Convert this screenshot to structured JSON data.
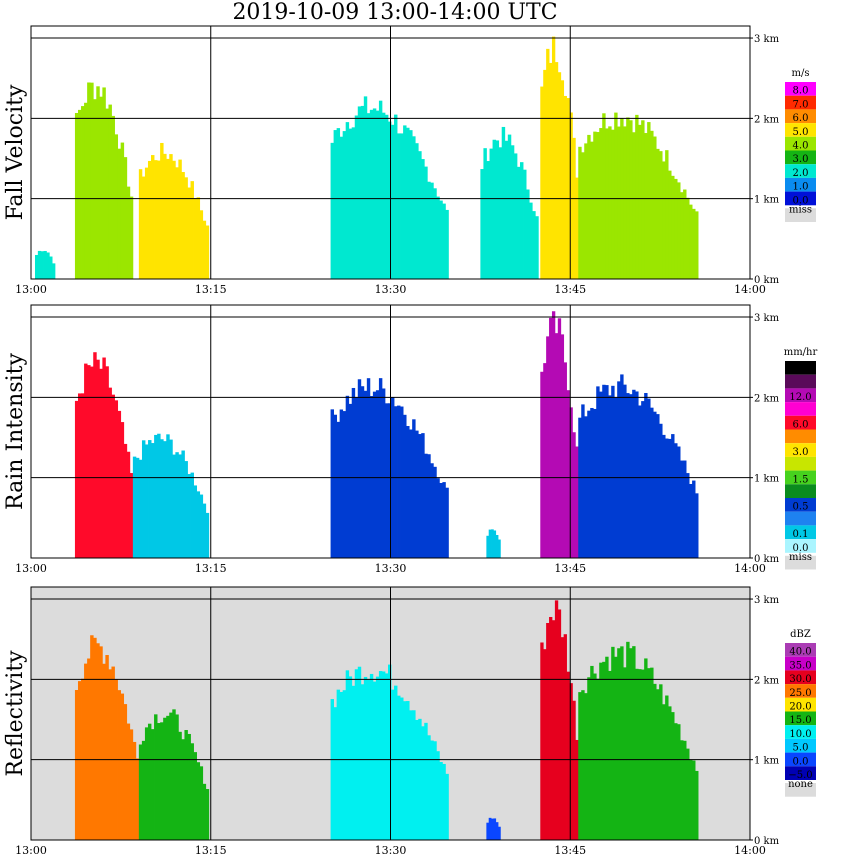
{
  "title": "2019-10-09   13:00-14:00 UTC",
  "time_ticks": [
    "13:00",
    "13:15",
    "13:30",
    "13:45",
    "14:00"
  ],
  "height_ticks": [
    "0 km",
    "1 km",
    "2 km",
    "3 km"
  ],
  "colors": {
    "missing": "#dcdcdc",
    "frame": "#000000"
  },
  "chart_data": [
    {
      "type": "heatmap",
      "title": "Fall Velocity",
      "ylabel": "Fall Velocity",
      "unit": "m/s",
      "x_range": [
        "13:00",
        "14:00"
      ],
      "y_range_km": [
        0,
        3.1
      ],
      "x_ticks": [
        "13:00",
        "13:15",
        "13:30",
        "13:45",
        "14:00"
      ],
      "y_ticks": [
        "0 km",
        "1 km",
        "2 km",
        "3 km"
      ],
      "grid": true,
      "background": "#ffffff",
      "legend": [
        {
          "label": "8.0",
          "color": "#ff00ff"
        },
        {
          "label": "7.0",
          "color": "#ff2a00"
        },
        {
          "label": "6.0",
          "color": "#ff8c00"
        },
        {
          "label": "5.0",
          "color": "#ffe400"
        },
        {
          "label": "4.0",
          "color": "#9be600"
        },
        {
          "label": "3.0",
          "color": "#14b414"
        },
        {
          "label": "2.0",
          "color": "#00e8d0"
        },
        {
          "label": "1.0",
          "color": "#0a8cf0"
        },
        {
          "label": "0.0",
          "color": "#0010d8"
        }
      ],
      "legend_missing": "miss",
      "echoes": [
        {
          "t0": "13:00:20",
          "t1": "13:02:00",
          "bottom_km": 0,
          "top_km": 0.4,
          "value": "2.0"
        },
        {
          "t0": "13:03:40",
          "t1": "13:08:30",
          "bottom_km": 0,
          "top_km": 2.6,
          "value": "4.0"
        },
        {
          "t0": "13:09:00",
          "t1": "13:14:50",
          "bottom_km": 0,
          "top_km": 1.7,
          "value": "5.0"
        },
        {
          "t0": "13:25:00",
          "t1": "13:34:50",
          "bottom_km": 0,
          "top_km": 2.3,
          "value": "2.0"
        },
        {
          "t0": "13:37:30",
          "t1": "13:42:20",
          "bottom_km": 0,
          "top_km": 1.9,
          "value": "2.0"
        },
        {
          "t0": "13:42:30",
          "t1": "13:45:40",
          "bottom_km": 0,
          "top_km": 3.1,
          "value": "5.0"
        },
        {
          "t0": "13:45:40",
          "t1": "13:55:40",
          "bottom_km": 0,
          "top_km": 2.2,
          "value": "4.0"
        }
      ]
    },
    {
      "type": "heatmap",
      "title": "Rain Intensity",
      "ylabel": "Rain Intensity",
      "unit": "mm/hr",
      "x_range": [
        "13:00",
        "14:00"
      ],
      "y_range_km": [
        0,
        3.1
      ],
      "x_ticks": [
        "13:00",
        "13:15",
        "13:30",
        "13:45",
        "14:00"
      ],
      "y_ticks": [
        "0 km",
        "1 km",
        "2 km",
        "3 km"
      ],
      "grid": true,
      "background": "#ffffff",
      "legend": [
        {
          "label": "48.0",
          "color": "#000000"
        },
        {
          "label": "",
          "color": "#5a0a5a"
        },
        {
          "label": "12.0",
          "color": "#b40ab4"
        },
        {
          "label": "",
          "color": "#ff00d2"
        },
        {
          "label": "6.0",
          "color": "#ff0a2a"
        },
        {
          "label": "",
          "color": "#ff8c00"
        },
        {
          "label": "3.0",
          "color": "#ffe400"
        },
        {
          "label": "",
          "color": "#c8e600"
        },
        {
          "label": "1.5",
          "color": "#46d21e"
        },
        {
          "label": "",
          "color": "#0a8c1e"
        },
        {
          "label": "0.5",
          "color": "#003cd2"
        },
        {
          "label": "",
          "color": "#1e82f0"
        },
        {
          "label": "0.1",
          "color": "#00c8e6"
        },
        {
          "label": "0.0",
          "color": "#aaf5ff"
        }
      ],
      "legend_missing": "miss",
      "echoes": [
        {
          "t0": "13:03:40",
          "t1": "13:08:30",
          "bottom_km": 0,
          "top_km": 2.6,
          "value": "6.0"
        },
        {
          "t0": "13:08:30",
          "t1": "13:14:50",
          "bottom_km": 0,
          "top_km": 1.6,
          "value": "0.1"
        },
        {
          "t0": "13:25:00",
          "t1": "13:34:50",
          "bottom_km": 0,
          "top_km": 2.3,
          "value": "0.5"
        },
        {
          "t0": "13:38:00",
          "t1": "13:39:10",
          "bottom_km": 0,
          "top_km": 0.4,
          "value": "0.1"
        },
        {
          "t0": "13:42:30",
          "t1": "13:45:40",
          "bottom_km": 0,
          "top_km": 3.1,
          "value": "12.0"
        },
        {
          "t0": "13:45:40",
          "t1": "13:55:40",
          "bottom_km": 0,
          "top_km": 2.3,
          "value": "0.5"
        }
      ]
    },
    {
      "type": "heatmap",
      "title": "Reflectivity",
      "ylabel": "Reflectivity",
      "unit": "dBZ",
      "x_range": [
        "13:00",
        "14:00"
      ],
      "y_range_km": [
        0,
        3.1
      ],
      "x_ticks": [
        "13:00",
        "13:15",
        "13:30",
        "13:45",
        "14:00"
      ],
      "y_ticks": [
        "0 km",
        "1 km",
        "2 km",
        "3 km"
      ],
      "grid": true,
      "background": "#dcdcdc",
      "legend": [
        {
          "label": "40.0",
          "color": "#aa3cb4"
        },
        {
          "label": "35.0",
          "color": "#c800c8"
        },
        {
          "label": "30.0",
          "color": "#e6001e"
        },
        {
          "label": "25.0",
          "color": "#ff7800"
        },
        {
          "label": "20.0",
          "color": "#ffe400"
        },
        {
          "label": "15.0",
          "color": "#14b414"
        },
        {
          "label": "10.0",
          "color": "#00f0f0"
        },
        {
          "label": "5.0",
          "color": "#00c8ff"
        },
        {
          "label": "0.0",
          "color": "#0a46ff"
        },
        {
          "label": "−5.0",
          "color": "#0000b4"
        }
      ],
      "legend_missing": "none",
      "echoes": [
        {
          "t0": "13:03:40",
          "t1": "13:09:00",
          "bottom_km": 0,
          "top_km": 2.6,
          "value": "25.0"
        },
        {
          "t0": "13:09:00",
          "t1": "13:14:50",
          "bottom_km": 0,
          "top_km": 1.7,
          "value": "15.0"
        },
        {
          "t0": "13:25:00",
          "t1": "13:34:50",
          "bottom_km": 0,
          "top_km": 2.3,
          "value": "10.0"
        },
        {
          "t0": "13:38:00",
          "t1": "13:39:10",
          "bottom_km": 0,
          "top_km": 0.3,
          "value": "0.0"
        },
        {
          "t0": "13:42:30",
          "t1": "13:45:40",
          "bottom_km": 0,
          "top_km": 3.1,
          "value": "30.0"
        },
        {
          "t0": "13:45:40",
          "t1": "13:55:40",
          "bottom_km": 0,
          "top_km": 2.5,
          "value": "15.0"
        }
      ]
    }
  ]
}
